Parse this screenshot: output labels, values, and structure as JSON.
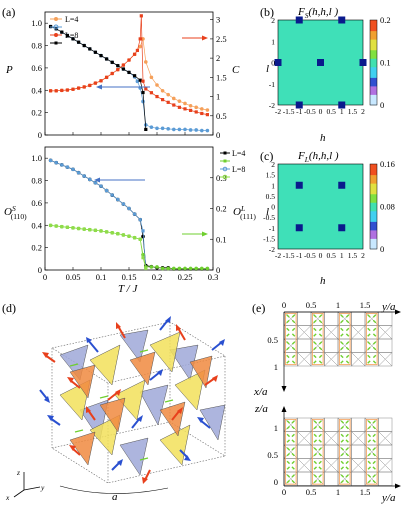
{
  "panels": {
    "a": "(a)",
    "b": "(b)",
    "c": "(c)",
    "d": "(d)",
    "e": "(e)"
  },
  "panel_a": {
    "top_left_ylabel": "P",
    "top_right_ylabel": "C",
    "bottom_left_ylabel_main": "O",
    "bottom_left_ylabel_sup": "S",
    "bottom_left_ylabel_sub": "(110)",
    "bottom_right_ylabel_main": "O",
    "bottom_right_ylabel_sup": "L",
    "bottom_right_ylabel_sub": "(111)",
    "xlabel": "T / J",
    "top_legend": [
      "L=4",
      "L=8"
    ],
    "bottom_legend": [
      "L=4",
      "L=8"
    ],
    "top_left_ticks": [
      "0",
      "0.2",
      "0.4",
      "0.6",
      "0.8",
      "1.0"
    ],
    "top_right_ticks": [
      "0",
      "0.5",
      "1",
      "1.5",
      "2",
      "2.5",
      "3"
    ],
    "bottom_left_ticks": [
      "0",
      "0.2",
      "0.4",
      "0.6",
      "0.8",
      "1.0"
    ],
    "bottom_right_ticks": [
      "0",
      "0.1",
      "0.2",
      "0.3"
    ],
    "x_ticks": [
      "0",
      "0.05",
      "0.1",
      "0.15",
      "0.2",
      "0.25",
      "0.3"
    ]
  },
  "panel_b": {
    "title": "F_S (h,h,l)",
    "title_main": "F",
    "title_sub": "S",
    "title_rest": "(h,h,l )",
    "xlabel": "h",
    "ylabel": "l",
    "x_ticks": [
      "-2",
      "-1.5",
      "-1",
      "-0.5",
      "0",
      "0.5",
      "1",
      "1.5",
      "2"
    ],
    "y_ticks": [
      "2",
      "1",
      "0",
      "-1",
      "-2"
    ],
    "colorbar_ticks": [
      "0.2",
      "0.1",
      "0"
    ]
  },
  "panel_c": {
    "title": "F_L (h,h,l)",
    "title_main": "F",
    "title_sub": "L",
    "title_rest": "(h,h,l )",
    "xlabel": "h",
    "ylabel": "l",
    "x_ticks": [
      "-2",
      "-1.5",
      "-1",
      "-0.5",
      "0",
      "0.5",
      "1",
      "1.5",
      "2"
    ],
    "y_ticks": [
      "2",
      "1.5",
      "1",
      "0.5",
      "0",
      "-0.5",
      "-1",
      "-1.5",
      "-2"
    ],
    "colorbar_ticks": [
      "0.16",
      "0.08",
      "0"
    ]
  },
  "panel_d": {
    "a_label": "a",
    "axes": [
      "z",
      "x",
      "y"
    ]
  },
  "panel_e": {
    "top_x_ticks": [
      "0",
      "0.5",
      "1",
      "1.5"
    ],
    "top_x_label": "y/a",
    "top_y_ticks": [
      "0.5",
      "1"
    ],
    "top_y_label": "x/a",
    "bottom_y_ticks": [
      "1",
      "0.5",
      "0"
    ],
    "bottom_y_label": "z/a",
    "bottom_x_ticks": [
      "0",
      "0.5",
      "1",
      "1.5"
    ],
    "bottom_x_label": "y/a"
  },
  "colors": {
    "orange": "#f5a05a",
    "red": "#e8401c",
    "blue": "#5b9bd5",
    "black": "#000000",
    "green": "#6fcf2f",
    "map_bg": "#3fe0b8",
    "map_spot": "#0a1a8c",
    "yellow": "#f2e05a",
    "lavender": "#9fa8d8"
  },
  "chart_data": [
    {
      "type": "scatter",
      "title": "",
      "xlabel": "T / J",
      "ylabel": "P",
      "ylabel_right": "C",
      "xlim": [
        0,
        0.3
      ],
      "ylim": [
        0,
        1.1
      ],
      "ylim_right": [
        0,
        3.2
      ],
      "series": [
        {
          "name": "L=4",
          "axis": "left",
          "color": "#5b9bd5",
          "x": [
            0.01,
            0.02,
            0.03,
            0.04,
            0.05,
            0.06,
            0.07,
            0.08,
            0.09,
            0.1,
            0.11,
            0.12,
            0.13,
            0.14,
            0.15,
            0.16,
            0.165,
            0.17,
            0.175,
            0.18,
            0.19,
            0.2,
            0.21,
            0.22,
            0.23,
            0.24,
            0.25,
            0.26,
            0.27,
            0.28,
            0.29
          ],
          "y": [
            0.97,
            0.95,
            0.92,
            0.89,
            0.86,
            0.83,
            0.8,
            0.77,
            0.74,
            0.71,
            0.68,
            0.65,
            0.62,
            0.59,
            0.56,
            0.52,
            0.48,
            0.42,
            0.3,
            0.09,
            0.07,
            0.06,
            0.06,
            0.055,
            0.05,
            0.05,
            0.05,
            0.045,
            0.045,
            0.04,
            0.04
          ]
        },
        {
          "name": "L=8",
          "axis": "left",
          "color": "#000000",
          "x": [
            0.01,
            0.02,
            0.03,
            0.04,
            0.05,
            0.06,
            0.07,
            0.08,
            0.09,
            0.1,
            0.11,
            0.12,
            0.13,
            0.14,
            0.15,
            0.16,
            0.17,
            0.175,
            0.18
          ],
          "y": [
            0.97,
            0.95,
            0.92,
            0.89,
            0.86,
            0.83,
            0.8,
            0.77,
            0.74,
            0.71,
            0.68,
            0.65,
            0.62,
            0.59,
            0.56,
            0.53,
            0.49,
            0.38,
            0.05
          ]
        },
        {
          "name": "L=4",
          "axis": "right",
          "color": "#f5a05a",
          "x": [
            0.01,
            0.02,
            0.03,
            0.04,
            0.05,
            0.06,
            0.07,
            0.08,
            0.09,
            0.1,
            0.11,
            0.12,
            0.13,
            0.14,
            0.15,
            0.16,
            0.17,
            0.175,
            0.18,
            0.19,
            0.2,
            0.21,
            0.22,
            0.23,
            0.24,
            0.25,
            0.26,
            0.27,
            0.28,
            0.29
          ],
          "y": [
            1.15,
            1.15,
            1.16,
            1.17,
            1.19,
            1.22,
            1.25,
            1.29,
            1.35,
            1.41,
            1.5,
            1.6,
            1.7,
            1.82,
            1.95,
            2.1,
            2.3,
            2.5,
            1.9,
            1.5,
            1.3,
            1.15,
            1.05,
            0.95,
            0.88,
            0.82,
            0.76,
            0.72,
            0.68,
            0.65
          ]
        },
        {
          "name": "L=8",
          "axis": "right",
          "color": "#e8401c",
          "x": [
            0.01,
            0.02,
            0.03,
            0.04,
            0.05,
            0.06,
            0.07,
            0.08,
            0.09,
            0.1,
            0.11,
            0.12,
            0.13,
            0.14,
            0.15,
            0.16,
            0.165,
            0.17,
            0.172,
            0.175,
            0.18,
            0.19,
            0.2,
            0.21,
            0.22,
            0.23,
            0.24,
            0.25,
            0.26,
            0.27,
            0.28,
            0.29
          ],
          "y": [
            1.15,
            1.15,
            1.16,
            1.17,
            1.19,
            1.22,
            1.25,
            1.29,
            1.35,
            1.41,
            1.5,
            1.6,
            1.7,
            1.82,
            1.95,
            2.1,
            2.2,
            2.5,
            3.1,
            1.4,
            1.2,
            1.1,
            1.0,
            0.92,
            0.85,
            0.78,
            0.72,
            0.68,
            0.64,
            0.6,
            0.56,
            0.53
          ]
        }
      ]
    },
    {
      "type": "scatter",
      "title": "",
      "xlabel": "T / J",
      "ylabel": "O^S_(110)",
      "ylabel_right": "O^L_(111)",
      "xlim": [
        0,
        0.3
      ],
      "ylim": [
        0,
        1.1
      ],
      "ylim_right": [
        0,
        0.4
      ],
      "series": [
        {
          "name": "L=4",
          "axis": "left",
          "color": "#000000",
          "x": [
            0.01,
            0.02,
            0.03,
            0.04,
            0.05,
            0.06,
            0.07,
            0.08,
            0.09,
            0.1,
            0.11,
            0.12,
            0.13,
            0.14,
            0.15,
            0.16,
            0.17,
            0.175,
            0.18,
            0.19,
            0.2,
            0.21,
            0.22,
            0.23,
            0.24,
            0.25,
            0.26,
            0.27,
            0.28,
            0.29
          ],
          "y": [
            0.98,
            0.96,
            0.94,
            0.92,
            0.9,
            0.87,
            0.84,
            0.81,
            0.78,
            0.75,
            0.71,
            0.67,
            0.63,
            0.59,
            0.55,
            0.5,
            0.45,
            0.3,
            0.04,
            0.03,
            0.02,
            0.02,
            0.02,
            0.01,
            0.01,
            0.01,
            0.01,
            0.01,
            0.01,
            0.01
          ]
        },
        {
          "name": "L=8",
          "axis": "left",
          "color": "#5b9bd5",
          "x": [
            0.01,
            0.02,
            0.03,
            0.04,
            0.05,
            0.06,
            0.07,
            0.08,
            0.09,
            0.1,
            0.11,
            0.12,
            0.13,
            0.14,
            0.15,
            0.16,
            0.17,
            0.175,
            0.18
          ],
          "y": [
            0.98,
            0.96,
            0.94,
            0.92,
            0.9,
            0.87,
            0.84,
            0.81,
            0.78,
            0.75,
            0.71,
            0.67,
            0.63,
            0.59,
            0.55,
            0.5,
            0.45,
            0.35,
            0.02
          ]
        },
        {
          "name": "L=4",
          "axis": "right",
          "color": "#6fcf2f",
          "x": [
            0.01,
            0.02,
            0.03,
            0.04,
            0.05,
            0.06,
            0.07,
            0.08,
            0.09,
            0.1,
            0.11,
            0.12,
            0.13,
            0.14,
            0.15,
            0.16,
            0.17,
            0.175,
            0.18,
            0.19,
            0.2,
            0.21,
            0.22,
            0.23,
            0.24,
            0.25,
            0.26,
            0.27,
            0.28,
            0.29
          ],
          "y": [
            0.145,
            0.143,
            0.141,
            0.139,
            0.137,
            0.135,
            0.133,
            0.131,
            0.129,
            0.127,
            0.124,
            0.121,
            0.118,
            0.114,
            0.11,
            0.105,
            0.1,
            0.05,
            0.01,
            0.01,
            0.01,
            0.005,
            0.005,
            0.005,
            0.005,
            0.005,
            0.005,
            0.005,
            0.005,
            0.005
          ]
        },
        {
          "name": "L=8",
          "axis": "right",
          "color": "#8fdc4a",
          "x": [
            0.01,
            0.02,
            0.03,
            0.04,
            0.05,
            0.06,
            0.07,
            0.08,
            0.09,
            0.1,
            0.11,
            0.12,
            0.13,
            0.14,
            0.15,
            0.16,
            0.17,
            0.175,
            0.18
          ],
          "y": [
            0.145,
            0.143,
            0.141,
            0.139,
            0.137,
            0.135,
            0.133,
            0.131,
            0.129,
            0.127,
            0.124,
            0.121,
            0.118,
            0.114,
            0.11,
            0.105,
            0.1,
            0.04,
            0.005
          ]
        }
      ]
    },
    {
      "type": "heatmap",
      "title": "F_S (h,h,l)",
      "xlabel": "h",
      "ylabel": "l",
      "xlim": [
        -2,
        2
      ],
      "ylim": [
        -2,
        2
      ],
      "colorbar_range": [
        0,
        0.2
      ],
      "peaks": [
        {
          "h": -1,
          "l": 2
        },
        {
          "h": 1,
          "l": 2
        },
        {
          "h": -2,
          "l": 0
        },
        {
          "h": 0,
          "l": 0
        },
        {
          "h": 2,
          "l": 0
        },
        {
          "h": -1,
          "l": -2
        },
        {
          "h": 1,
          "l": -2
        }
      ]
    },
    {
      "type": "heatmap",
      "title": "F_L (h,h,l)",
      "xlabel": "h",
      "ylabel": "l",
      "xlim": [
        -2,
        2
      ],
      "ylim": [
        -2,
        2
      ],
      "colorbar_range": [
        0,
        0.16
      ],
      "peaks": [
        {
          "h": -1,
          "l": 1
        },
        {
          "h": 1,
          "l": 1
        },
        {
          "h": -1,
          "l": -1
        },
        {
          "h": 1,
          "l": -1
        }
      ]
    }
  ]
}
